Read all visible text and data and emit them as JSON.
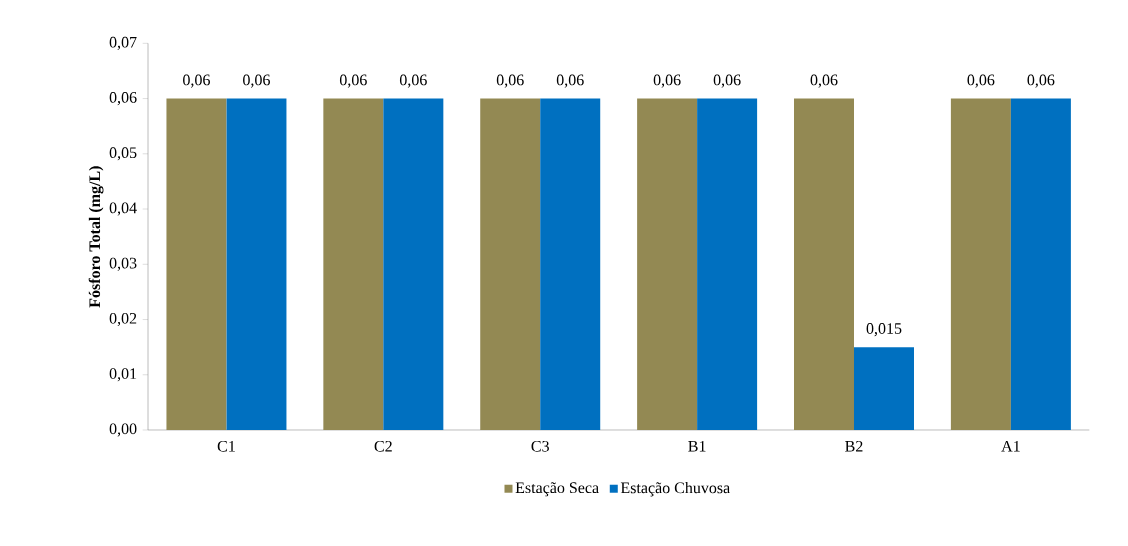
{
  "chart_data": {
    "type": "bar",
    "ylabel": "Fósforo Total  (mg/L)",
    "categories": [
      "C1",
      "C2",
      "C3",
      "B1",
      "B2",
      "A1"
    ],
    "series": [
      {
        "name": "Estação Seca",
        "color": "#938953",
        "values": [
          0.06,
          0.06,
          0.06,
          0.06,
          0.06,
          0.06
        ],
        "value_labels": [
          "0,06",
          "0,06",
          "0,06",
          "0,06",
          "0,06",
          "0,06"
        ]
      },
      {
        "name": "Estação Chuvosa",
        "color": "#0070c0",
        "values": [
          0.06,
          0.06,
          0.06,
          0.06,
          0.015,
          0.06
        ],
        "value_labels": [
          "0,06",
          "0,06",
          "0,06",
          "0,06",
          "0,015",
          "0,06"
        ]
      }
    ],
    "ylim": [
      0,
      0.07
    ],
    "yticks": [
      {
        "value": 0,
        "label": "0,00"
      },
      {
        "value": 0.01,
        "label": "0,01"
      },
      {
        "value": 0.02,
        "label": "0,02"
      },
      {
        "value": 0.03,
        "label": "0,03"
      },
      {
        "value": 0.04,
        "label": "0,04"
      },
      {
        "value": 0.05,
        "label": "0,05"
      },
      {
        "value": 0.06,
        "label": "0,06"
      },
      {
        "value": 0.07,
        "label": "0,07"
      }
    ],
    "grid": false,
    "legend": "bottom"
  }
}
